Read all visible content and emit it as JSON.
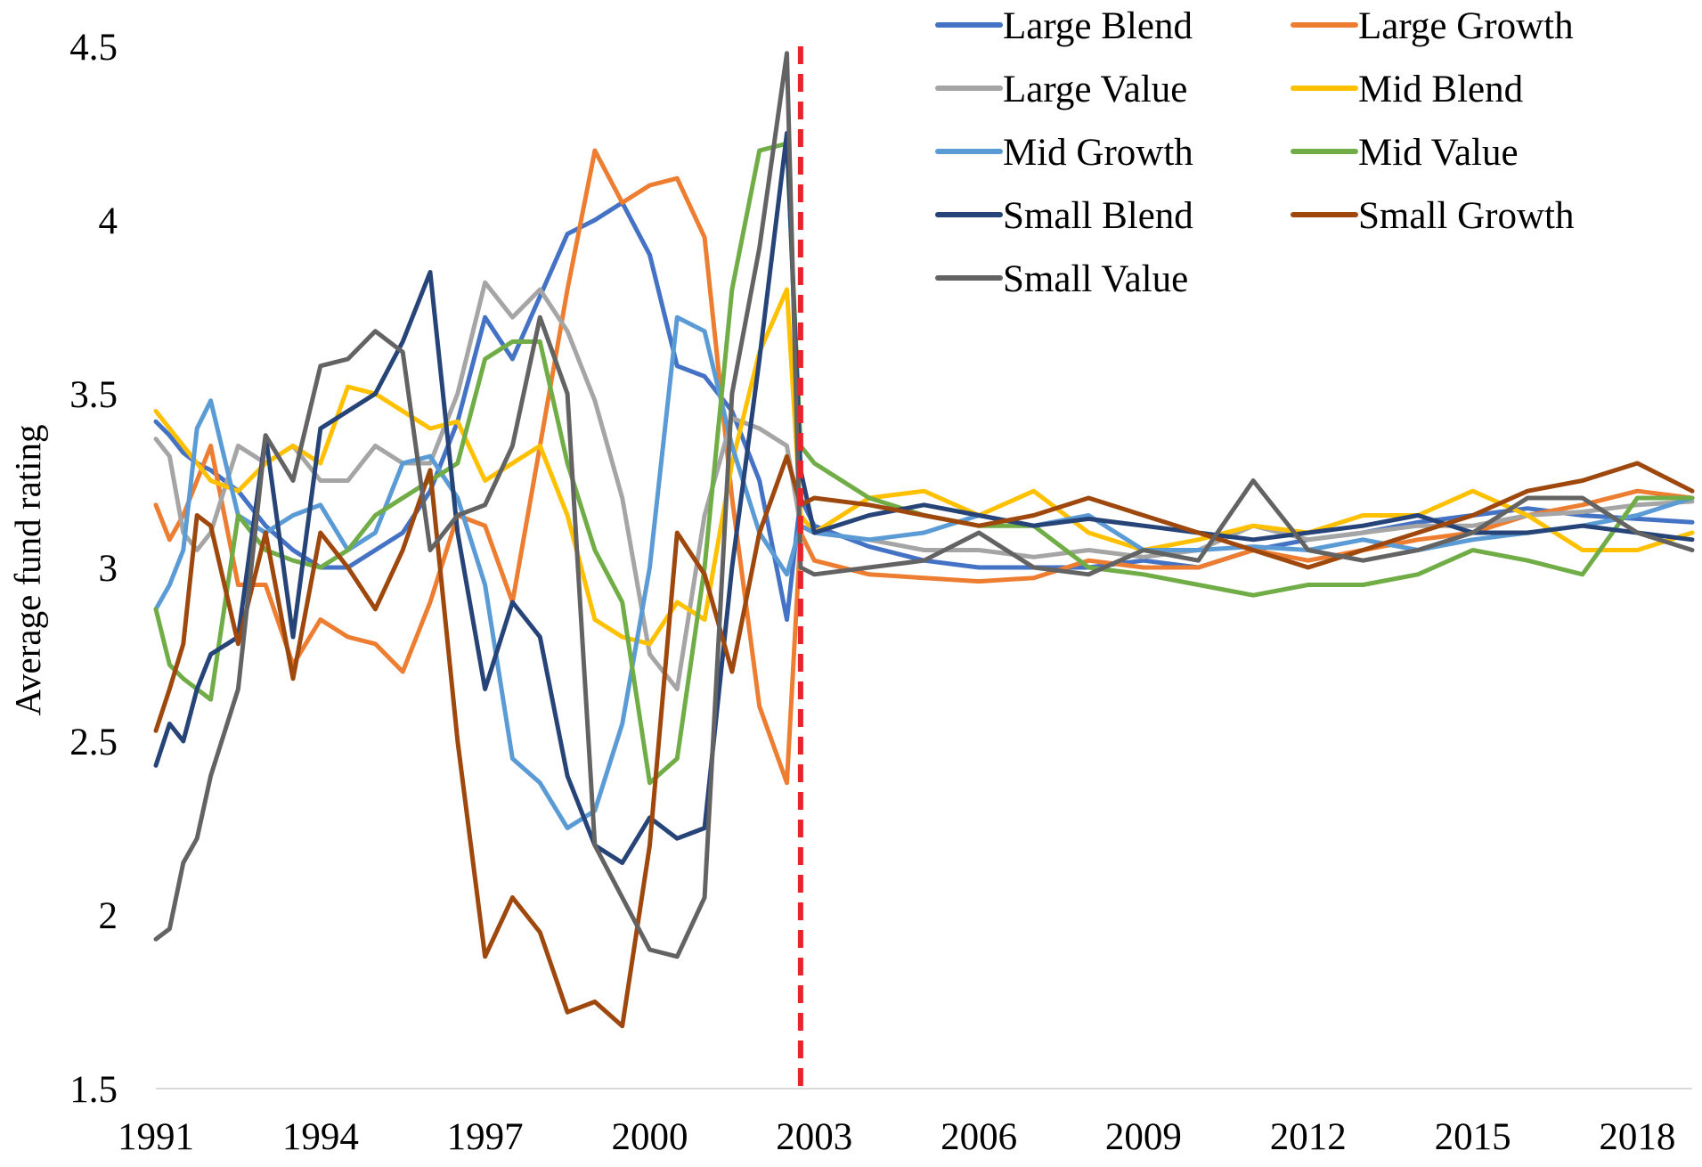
{
  "chart_data": {
    "type": "line",
    "title": "",
    "xlabel": "",
    "ylabel": "Average fund rating",
    "x_range": [
      1991,
      2019
    ],
    "ylim": [
      1.5,
      4.5
    ],
    "xticks": [
      "1991",
      "1994",
      "1997",
      "2000",
      "2003",
      "2006",
      "2009",
      "2012",
      "2015",
      "2018"
    ],
    "yticks": [
      "1.5",
      "2",
      "2.5",
      "3",
      "3.5",
      "4",
      "4.5"
    ],
    "grid": false,
    "legend_position": "top-right",
    "reference_line": {
      "x": 2002.75,
      "style": "dashed",
      "color": "#e8252b"
    },
    "series": [
      {
        "name": "Large Blend",
        "color": "#4472c4",
        "x": [
          1991,
          1991.25,
          1991.5,
          1991.75,
          1992,
          1992.5,
          1993,
          1993.5,
          1994,
          1994.5,
          1995,
          1995.5,
          1996,
          1996.5,
          1997,
          1997.5,
          1998,
          1998.5,
          1999,
          1999.5,
          2000,
          2000.5,
          2001,
          2001.5,
          2002,
          2002.5,
          2002.75,
          2003,
          2004,
          2005,
          2006,
          2007,
          2008,
          2009,
          2010,
          2011,
          2012,
          2013,
          2014,
          2015,
          2016,
          2017,
          2018,
          2019
        ],
        "y": [
          3.42,
          3.38,
          3.33,
          3.3,
          3.28,
          3.22,
          3.12,
          3.05,
          3.0,
          3.0,
          3.05,
          3.1,
          3.22,
          3.42,
          3.72,
          3.6,
          3.78,
          3.96,
          4.0,
          4.05,
          3.9,
          3.58,
          3.55,
          3.45,
          3.25,
          2.85,
          3.2,
          3.12,
          3.06,
          3.02,
          3.0,
          3.0,
          3.0,
          3.02,
          3.0,
          3.05,
          3.08,
          3.1,
          3.13,
          3.15,
          3.17,
          3.15,
          3.14,
          3.13
        ]
      },
      {
        "name": "Large Growth",
        "color": "#ed7d31",
        "x": [
          1991,
          1991.25,
          1991.5,
          1991.75,
          1992,
          1992.5,
          1993,
          1993.5,
          1994,
          1994.5,
          1995,
          1995.5,
          1996,
          1996.5,
          1997,
          1997.5,
          1998,
          1998.5,
          1999,
          1999.5,
          2000,
          2000.5,
          2001,
          2001.5,
          2002,
          2002.5,
          2002.75,
          2003,
          2004,
          2005,
          2006,
          2007,
          2008,
          2009,
          2010,
          2011,
          2012,
          2013,
          2014,
          2015,
          2016,
          2017,
          2018,
          2019
        ],
        "y": [
          3.18,
          3.08,
          3.15,
          3.25,
          3.35,
          2.95,
          2.95,
          2.72,
          2.85,
          2.8,
          2.78,
          2.7,
          2.9,
          3.15,
          3.12,
          2.9,
          3.35,
          3.8,
          4.2,
          4.05,
          4.1,
          4.12,
          3.95,
          3.2,
          2.6,
          2.38,
          3.1,
          3.02,
          2.98,
          2.97,
          2.96,
          2.97,
          3.02,
          3.0,
          3.0,
          3.05,
          3.02,
          3.05,
          3.08,
          3.1,
          3.15,
          3.18,
          3.22,
          3.2
        ]
      },
      {
        "name": "Large Value",
        "color": "#a5a5a5",
        "x": [
          1991,
          1991.25,
          1991.5,
          1991.75,
          1992,
          1992.5,
          1993,
          1993.5,
          1994,
          1994.5,
          1995,
          1995.5,
          1996,
          1996.5,
          1997,
          1997.5,
          1998,
          1998.5,
          1999,
          1999.5,
          2000,
          2000.5,
          2001,
          2001.5,
          2002,
          2002.5,
          2002.75,
          2003,
          2004,
          2005,
          2006,
          2007,
          2008,
          2009,
          2010,
          2011,
          2012,
          2013,
          2014,
          2015,
          2016,
          2017,
          2018,
          2019
        ],
        "y": [
          3.37,
          3.32,
          3.1,
          3.05,
          3.1,
          3.35,
          3.3,
          3.35,
          3.25,
          3.25,
          3.35,
          3.3,
          3.3,
          3.5,
          3.82,
          3.72,
          3.8,
          3.68,
          3.48,
          3.2,
          2.75,
          2.65,
          3.15,
          3.43,
          3.4,
          3.35,
          3.12,
          3.1,
          3.08,
          3.05,
          3.05,
          3.03,
          3.05,
          3.03,
          3.05,
          3.12,
          3.08,
          3.1,
          3.12,
          3.12,
          3.15,
          3.16,
          3.18,
          3.19
        ]
      },
      {
        "name": "Mid Blend",
        "color": "#ffc000",
        "x": [
          1991,
          1991.25,
          1991.5,
          1991.75,
          1992,
          1992.5,
          1993,
          1993.5,
          1994,
          1994.5,
          1995,
          1995.5,
          1996,
          1996.5,
          1997,
          1997.5,
          1998,
          1998.5,
          1999,
          1999.5,
          2000,
          2000.5,
          2001,
          2001.5,
          2002,
          2002.5,
          2002.75,
          2003,
          2004,
          2005,
          2006,
          2007,
          2008,
          2009,
          2010,
          2011,
          2012,
          2013,
          2014,
          2015,
          2016,
          2017,
          2018,
          2019
        ],
        "y": [
          3.45,
          3.4,
          3.35,
          3.3,
          3.25,
          3.22,
          3.3,
          3.35,
          3.3,
          3.52,
          3.5,
          3.45,
          3.4,
          3.42,
          3.25,
          3.3,
          3.35,
          3.15,
          2.85,
          2.8,
          2.78,
          2.9,
          2.85,
          3.3,
          3.62,
          3.8,
          3.15,
          3.1,
          3.2,
          3.22,
          3.15,
          3.22,
          3.1,
          3.05,
          3.08,
          3.12,
          3.1,
          3.15,
          3.15,
          3.22,
          3.15,
          3.05,
          3.05,
          3.1
        ]
      },
      {
        "name": "Mid Growth",
        "color": "#5b9bd5",
        "x": [
          1991,
          1991.25,
          1991.5,
          1991.75,
          1992,
          1992.5,
          1993,
          1993.5,
          1994,
          1994.5,
          1995,
          1995.5,
          1996,
          1996.5,
          1997,
          1997.5,
          1998,
          1998.5,
          1999,
          1999.5,
          2000,
          2000.5,
          2001,
          2001.5,
          2002,
          2002.5,
          2002.75,
          2003,
          2004,
          2005,
          2006,
          2007,
          2008,
          2009,
          2010,
          2011,
          2012,
          2013,
          2014,
          2015,
          2016,
          2017,
          2018,
          2019
        ],
        "y": [
          2.88,
          2.95,
          3.05,
          3.4,
          3.48,
          3.15,
          3.1,
          3.15,
          3.18,
          3.05,
          3.1,
          3.3,
          3.32,
          3.2,
          2.95,
          2.45,
          2.38,
          2.25,
          2.3,
          2.55,
          3.0,
          3.72,
          3.68,
          3.35,
          3.1,
          2.98,
          3.12,
          3.1,
          3.08,
          3.1,
          3.15,
          3.12,
          3.15,
          3.05,
          3.05,
          3.06,
          3.05,
          3.08,
          3.05,
          3.08,
          3.1,
          3.12,
          3.15,
          3.2
        ]
      },
      {
        "name": "Mid Value",
        "color": "#70ad47",
        "x": [
          1991,
          1991.25,
          1991.5,
          1991.75,
          1992,
          1992.5,
          1993,
          1993.5,
          1994,
          1994.5,
          1995,
          1995.5,
          1996,
          1996.5,
          1997,
          1997.5,
          1998,
          1998.5,
          1999,
          1999.5,
          2000,
          2000.5,
          2001,
          2001.5,
          2002,
          2002.5,
          2002.75,
          2003,
          2004,
          2005,
          2006,
          2007,
          2008,
          2009,
          2010,
          2011,
          2012,
          2013,
          2014,
          2015,
          2016,
          2017,
          2018,
          2019
        ],
        "y": [
          2.88,
          2.72,
          2.68,
          2.65,
          2.62,
          3.15,
          3.05,
          3.02,
          3.0,
          3.05,
          3.15,
          3.2,
          3.25,
          3.3,
          3.6,
          3.65,
          3.65,
          3.3,
          3.05,
          2.9,
          2.38,
          2.45,
          3.0,
          3.8,
          4.2,
          4.22,
          3.35,
          3.3,
          3.2,
          3.15,
          3.12,
          3.12,
          3.0,
          2.98,
          2.95,
          2.92,
          2.95,
          2.95,
          2.98,
          3.05,
          3.02,
          2.98,
          3.2,
          3.2
        ]
      },
      {
        "name": "Small Blend",
        "color": "#264478",
        "x": [
          1991,
          1991.25,
          1991.5,
          1991.75,
          1992,
          1992.5,
          1993,
          1993.5,
          1994,
          1994.5,
          1995,
          1995.5,
          1996,
          1996.5,
          1997,
          1997.5,
          1998,
          1998.5,
          1999,
          1999.5,
          2000,
          2000.5,
          2001,
          2001.5,
          2002,
          2002.5,
          2002.75,
          2003,
          2004,
          2005,
          2006,
          2007,
          2008,
          2009,
          2010,
          2011,
          2012,
          2013,
          2014,
          2015,
          2016,
          2017,
          2018,
          2019
        ],
        "y": [
          2.43,
          2.55,
          2.5,
          2.65,
          2.75,
          2.8,
          3.38,
          2.8,
          3.4,
          3.45,
          3.5,
          3.65,
          3.85,
          3.1,
          2.65,
          2.9,
          2.8,
          2.4,
          2.2,
          2.15,
          2.28,
          2.22,
          2.25,
          3.0,
          3.6,
          4.25,
          3.28,
          3.1,
          3.15,
          3.18,
          3.15,
          3.12,
          3.14,
          3.12,
          3.1,
          3.08,
          3.1,
          3.12,
          3.15,
          3.1,
          3.1,
          3.12,
          3.1,
          3.08
        ]
      },
      {
        "name": "Small Growth",
        "color": "#9e480e",
        "x": [
          1991,
          1991.25,
          1991.5,
          1991.75,
          1992,
          1992.5,
          1993,
          1993.5,
          1994,
          1994.5,
          1995,
          1995.5,
          1996,
          1996.5,
          1997,
          1997.5,
          1998,
          1998.5,
          1999,
          1999.5,
          2000,
          2000.5,
          2001,
          2001.5,
          2002,
          2002.5,
          2002.75,
          2003,
          2004,
          2005,
          2006,
          2007,
          2008,
          2009,
          2010,
          2011,
          2012,
          2013,
          2014,
          2015,
          2016,
          2017,
          2018,
          2019
        ],
        "y": [
          2.53,
          2.65,
          2.78,
          3.15,
          3.12,
          2.78,
          3.1,
          2.68,
          3.1,
          3.0,
          2.88,
          3.05,
          3.28,
          2.5,
          1.88,
          2.05,
          1.95,
          1.72,
          1.75,
          1.68,
          2.2,
          3.1,
          2.98,
          2.7,
          3.1,
          3.32,
          3.18,
          3.2,
          3.18,
          3.15,
          3.12,
          3.15,
          3.2,
          3.15,
          3.1,
          3.05,
          3.0,
          3.05,
          3.1,
          3.15,
          3.22,
          3.25,
          3.3,
          3.22
        ]
      },
      {
        "name": "Small Value",
        "color": "#636363",
        "x": [
          1991,
          1991.25,
          1991.5,
          1991.75,
          1992,
          1992.5,
          1993,
          1993.5,
          1994,
          1994.5,
          1995,
          1995.5,
          1996,
          1996.5,
          1997,
          1997.5,
          1998,
          1998.5,
          1999,
          1999.5,
          2000,
          2000.5,
          2001,
          2001.5,
          2002,
          2002.5,
          2002.75,
          2003,
          2004,
          2005,
          2006,
          2007,
          2008,
          2009,
          2010,
          2011,
          2012,
          2013,
          2014,
          2015,
          2016,
          2017,
          2018,
          2019
        ],
        "y": [
          1.93,
          1.96,
          2.15,
          2.22,
          2.4,
          2.65,
          3.38,
          3.25,
          3.58,
          3.6,
          3.68,
          3.62,
          3.05,
          3.15,
          3.18,
          3.35,
          3.72,
          3.5,
          2.2,
          2.05,
          1.9,
          1.88,
          2.05,
          3.5,
          3.92,
          4.48,
          3.0,
          2.98,
          3.0,
          3.02,
          3.1,
          3.0,
          2.98,
          3.05,
          3.02,
          3.25,
          3.05,
          3.02,
          3.05,
          3.1,
          3.2,
          3.2,
          3.1,
          3.05
        ]
      }
    ]
  }
}
